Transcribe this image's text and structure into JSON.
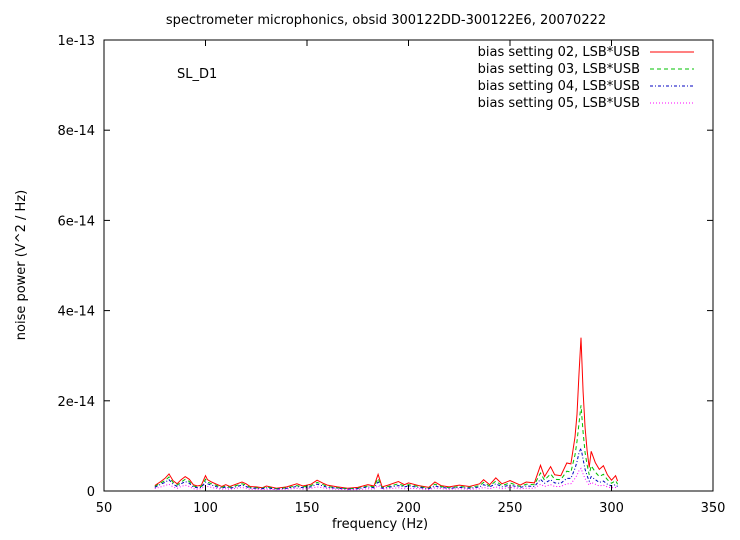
{
  "chart_data": {
    "type": "line",
    "title": "spectrometer microphonics, obsid 300122DD-300122E6, 20070222",
    "xlabel": "frequency (Hz)",
    "ylabel": "noise power (V^2 / Hz)",
    "annotation": "SL_D1",
    "xlim": [
      50,
      350
    ],
    "ylim": [
      0,
      1e-13
    ],
    "x_ticks": [
      50,
      100,
      150,
      200,
      250,
      300,
      350
    ],
    "x_tick_labels": [
      "50",
      "100",
      "150",
      "200",
      "250",
      "300",
      "350"
    ],
    "y_ticks": [
      0,
      2e-14,
      4e-14,
      6e-14,
      8e-14,
      1e-13
    ],
    "y_tick_labels": [
      "0",
      "2e-14",
      "4e-14",
      "6e-14",
      "8e-14",
      "1e-13"
    ],
    "legend_position": "top-right",
    "grid": false,
    "series": [
      {
        "name": "bias setting 02, LSB*USB",
        "color": "#ff0000",
        "dash": "solid",
        "x": [
          75,
          78,
          80,
          82,
          84,
          86,
          88,
          90,
          92,
          94,
          96,
          98,
          100,
          101,
          103,
          105,
          108,
          110,
          112,
          115,
          118,
          120,
          122,
          125,
          128,
          130,
          135,
          140,
          145,
          148,
          152,
          155,
          158,
          160,
          165,
          170,
          175,
          180,
          183,
          185,
          187,
          190,
          195,
          198,
          200,
          205,
          210,
          213,
          216,
          220,
          225,
          230,
          235,
          237,
          240,
          243,
          246,
          250,
          255,
          258,
          262,
          265,
          267,
          270,
          272,
          275,
          278,
          280,
          282,
          283,
          284,
          285,
          286,
          287,
          288,
          289,
          290,
          292,
          294,
          296,
          298,
          300,
          302,
          303
        ],
        "y": [
          1.2e-15,
          2.1e-15,
          2.8e-15,
          3.8e-15,
          2.3e-15,
          1.6e-15,
          2.5e-15,
          3.2e-15,
          2.6e-15,
          1.4e-15,
          1.1e-15,
          1.3e-15,
          3.4e-15,
          2.5e-15,
          2e-15,
          1.6e-15,
          1e-15,
          1.4e-15,
          1e-15,
          1.5e-15,
          2e-15,
          1.6e-15,
          1e-15,
          9e-16,
          7e-16,
          1.1e-15,
          6e-16,
          9e-16,
          1.6e-15,
          1.1e-15,
          1.5e-15,
          2.4e-15,
          1.7e-15,
          1.3e-15,
          9e-16,
          6e-16,
          8e-16,
          1.4e-15,
          1.1e-15,
          3.7e-15,
          9e-16,
          1.3e-15,
          2.1e-15,
          1.4e-15,
          1.8e-15,
          1.2e-15,
          8e-16,
          2e-15,
          1.2e-15,
          9e-16,
          1.3e-15,
          1e-15,
          1.6e-15,
          2.5e-15,
          1.4e-15,
          2.9e-15,
          1.6e-15,
          2.3e-15,
          1.3e-15,
          2e-15,
          1.8e-15,
          5.7e-15,
          3.2e-15,
          5.4e-15,
          3.6e-15,
          3.4e-15,
          6.2e-15,
          6e-15,
          1.2e-14,
          1.7e-14,
          2.6e-14,
          3.4e-14,
          2.2e-14,
          1.4e-14,
          9e-15,
          5.2e-15,
          8.8e-15,
          6.3e-15,
          4.8e-15,
          5.6e-15,
          3.6e-15,
          2.4e-15,
          3.4e-15,
          2.2e-15
        ]
      },
      {
        "name": "bias setting 03, LSB*USB",
        "color": "#00c000",
        "dash": "dash",
        "x": [
          75,
          78,
          80,
          82,
          84,
          86,
          88,
          90,
          92,
          94,
          96,
          98,
          100,
          101,
          103,
          105,
          108,
          110,
          112,
          115,
          118,
          120,
          122,
          125,
          128,
          130,
          135,
          140,
          145,
          148,
          152,
          155,
          158,
          160,
          165,
          170,
          175,
          180,
          183,
          185,
          187,
          190,
          195,
          198,
          200,
          205,
          210,
          213,
          216,
          220,
          225,
          230,
          235,
          237,
          240,
          243,
          246,
          250,
          255,
          258,
          262,
          265,
          267,
          270,
          272,
          275,
          278,
          280,
          282,
          283,
          284,
          285,
          286,
          287,
          288,
          289,
          290,
          292,
          294,
          296,
          298,
          300,
          302,
          303
        ],
        "y": [
          1e-15,
          1.8e-15,
          2.3e-15,
          3.1e-15,
          1.9e-15,
          1.3e-15,
          2e-15,
          2.6e-15,
          2.1e-15,
          1.1e-15,
          9e-16,
          1e-15,
          2.6e-15,
          2e-15,
          1.6e-15,
          1.3e-15,
          8e-16,
          1.1e-15,
          8e-16,
          1.2e-15,
          1.6e-15,
          1.3e-15,
          8e-16,
          7e-16,
          6e-16,
          9e-16,
          5e-16,
          7e-16,
          1.2e-15,
          9e-16,
          1.2e-15,
          1.9e-15,
          1.4e-15,
          1e-15,
          7e-16,
          5e-16,
          6e-16,
          1.1e-15,
          9e-16,
          2.8e-15,
          7e-16,
          1e-15,
          1.6e-15,
          1.1e-15,
          1.4e-15,
          1e-15,
          6e-16,
          1.5e-15,
          1e-15,
          7e-16,
          1e-15,
          8e-16,
          1.2e-15,
          1.9e-15,
          1.1e-15,
          2.2e-15,
          1.2e-15,
          1.8e-15,
          1e-15,
          1.5e-15,
          1.4e-15,
          4e-15,
          2.4e-15,
          3.8e-15,
          2.6e-15,
          2.5e-15,
          4.4e-15,
          4.2e-15,
          8e-15,
          1.1e-14,
          1.5e-14,
          1.9e-14,
          1.3e-14,
          8.5e-15,
          5.8e-15,
          3.6e-15,
          5.6e-15,
          4.2e-15,
          3.2e-15,
          3.7e-15,
          2.5e-15,
          1.7e-15,
          2.3e-15,
          1.5e-15
        ]
      },
      {
        "name": "bias setting 04, LSB*USB",
        "color": "#0000c0",
        "dash": "dot-dash",
        "x": [
          75,
          78,
          80,
          82,
          84,
          86,
          88,
          90,
          92,
          94,
          96,
          98,
          100,
          101,
          103,
          105,
          108,
          110,
          112,
          115,
          118,
          120,
          122,
          125,
          128,
          130,
          135,
          140,
          145,
          148,
          152,
          155,
          158,
          160,
          165,
          170,
          175,
          180,
          183,
          185,
          187,
          190,
          195,
          198,
          200,
          205,
          210,
          213,
          216,
          220,
          225,
          230,
          235,
          237,
          240,
          243,
          246,
          250,
          255,
          258,
          262,
          265,
          267,
          270,
          272,
          275,
          278,
          280,
          282,
          283,
          284,
          285,
          286,
          287,
          288,
          289,
          290,
          292,
          294,
          296,
          298,
          300,
          302,
          303
        ],
        "y": [
          8e-16,
          1.5e-15,
          1.9e-15,
          2.5e-15,
          1.5e-15,
          1e-15,
          1.6e-15,
          2.1e-15,
          1.7e-15,
          9e-16,
          7e-16,
          8e-16,
          2e-15,
          1.6e-15,
          1.3e-15,
          1e-15,
          6e-16,
          9e-16,
          6e-16,
          9e-16,
          1.3e-15,
          1e-15,
          6e-16,
          6e-16,
          5e-16,
          7e-16,
          4e-16,
          6e-16,
          1e-15,
          7e-16,
          9e-16,
          1.5e-15,
          1.1e-15,
          8e-16,
          6e-16,
          4e-16,
          5e-16,
          9e-16,
          7e-16,
          2e-15,
          6e-16,
          8e-16,
          1.2e-15,
          9e-16,
          1.1e-15,
          8e-16,
          5e-16,
          1.1e-15,
          8e-16,
          6e-16,
          8e-16,
          6e-16,
          9e-16,
          1.4e-15,
          9e-16,
          1.6e-15,
          9e-16,
          1.3e-15,
          8e-16,
          1.1e-15,
          1e-15,
          2.6e-15,
          1.7e-15,
          2.5e-15,
          1.8e-15,
          1.7e-15,
          2.8e-15,
          2.8e-15,
          5e-15,
          6.5e-15,
          8.5e-15,
          9.5e-15,
          7e-15,
          4.8e-15,
          3.4e-15,
          2.2e-15,
          3.2e-15,
          2.5e-15,
          1.9e-15,
          2.2e-15,
          1.5e-15,
          1.1e-15,
          1.4e-15,
          1e-15
        ]
      },
      {
        "name": "bias setting 05, LSB*USB",
        "color": "#ff00ff",
        "dash": "dot",
        "x": [
          75,
          78,
          80,
          82,
          84,
          86,
          88,
          90,
          92,
          94,
          96,
          98,
          100,
          101,
          103,
          105,
          108,
          110,
          112,
          115,
          118,
          120,
          122,
          125,
          128,
          130,
          135,
          140,
          145,
          148,
          152,
          155,
          158,
          160,
          165,
          170,
          175,
          180,
          183,
          185,
          187,
          190,
          195,
          198,
          200,
          205,
          210,
          213,
          216,
          220,
          225,
          230,
          235,
          237,
          240,
          243,
          246,
          250,
          255,
          258,
          262,
          265,
          267,
          270,
          272,
          275,
          278,
          280,
          282,
          283,
          284,
          285,
          286,
          287,
          288,
          289,
          290,
          292,
          294,
          296,
          298,
          300,
          302,
          303
        ],
        "y": [
          5e-16,
          9e-16,
          1.2e-15,
          1.5e-15,
          9e-16,
          6e-16,
          1e-15,
          1.3e-15,
          1e-15,
          5e-16,
          4e-16,
          5e-16,
          1.2e-15,
          1e-15,
          8e-16,
          6e-16,
          4e-16,
          5e-16,
          4e-16,
          6e-16,
          8e-16,
          6e-16,
          4e-16,
          4e-16,
          3e-16,
          4e-16,
          3e-16,
          4e-16,
          6e-16,
          4e-16,
          6e-16,
          9e-16,
          7e-16,
          5e-16,
          4e-16,
          3e-16,
          3e-16,
          5e-16,
          4e-16,
          1.2e-15,
          4e-16,
          5e-16,
          7e-16,
          5e-16,
          6e-16,
          5e-16,
          3e-16,
          7e-16,
          5e-16,
          4e-16,
          5e-16,
          4e-16,
          5e-16,
          8e-16,
          5e-16,
          9e-16,
          5e-16,
          8e-16,
          5e-16,
          6e-16,
          6e-16,
          1.5e-15,
          1e-15,
          1.4e-15,
          1e-15,
          1e-15,
          1.6e-15,
          1.6e-15,
          2.8e-15,
          3.5e-15,
          4.5e-15,
          5e-15,
          3.8e-15,
          2.7e-15,
          2e-15,
          1.3e-15,
          1.9e-15,
          1.5e-15,
          1.1e-15,
          1.3e-15,
          9e-16,
          7e-16,
          8e-16,
          6e-16
        ]
      }
    ]
  }
}
